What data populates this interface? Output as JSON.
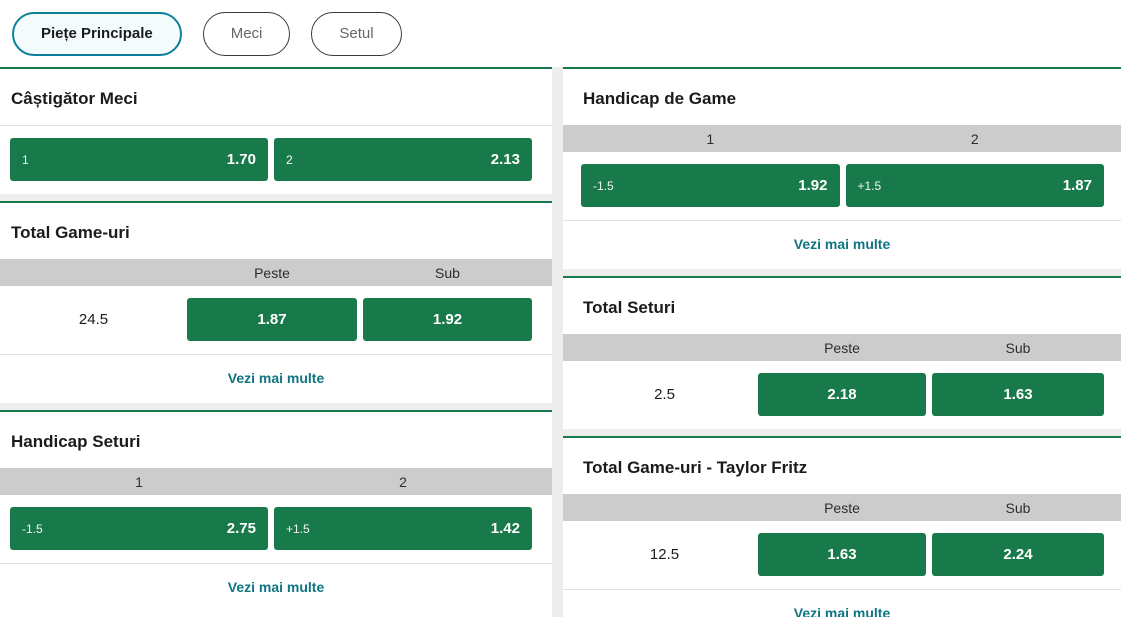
{
  "ui": {
    "show_more_label": "Vezi mai multe",
    "colors": {
      "accent_green": "#187a4b",
      "link_teal": "#0f7582",
      "selected_tab_border": "#0c7f99",
      "header_bar_gray": "#cccccc",
      "page_background": "#ededed"
    }
  },
  "tabs": [
    {
      "label": "Piețe Principale",
      "selected": true
    },
    {
      "label": "Meci",
      "selected": false
    },
    {
      "label": "Setul",
      "selected": false
    }
  ],
  "left_column": {
    "match_winner": {
      "title": "Câștigător Meci",
      "buttons": [
        {
          "label": "1",
          "odds": "1.70"
        },
        {
          "label": "2",
          "odds": "2.13"
        }
      ]
    },
    "total_games": {
      "title": "Total Game-uri",
      "headers": {
        "over": "Peste",
        "under": "Sub"
      },
      "line": "24.5",
      "over_odds": "1.87",
      "under_odds": "1.92"
    },
    "handicap_sets": {
      "title": "Handicap Seturi",
      "headers": {
        "col1": "1",
        "col2": "2"
      },
      "buttons": [
        {
          "label": "-1.5",
          "odds": "2.75"
        },
        {
          "label": "+1.5",
          "odds": "1.42"
        }
      ]
    }
  },
  "right_column": {
    "game_handicap": {
      "title": "Handicap de Game",
      "headers": {
        "col1": "1",
        "col2": "2"
      },
      "buttons": [
        {
          "label": "-1.5",
          "odds": "1.92"
        },
        {
          "label": "+1.5",
          "odds": "1.87"
        }
      ]
    },
    "total_sets": {
      "title": "Total Seturi",
      "headers": {
        "over": "Peste",
        "under": "Sub"
      },
      "line": "2.5",
      "over_odds": "2.18",
      "under_odds": "1.63"
    },
    "total_games_taylor_fritz": {
      "title": "Total Game-uri - Taylor Fritz",
      "headers": {
        "over": "Peste",
        "under": "Sub"
      },
      "line": "12.5",
      "over_odds": "1.63",
      "under_odds": "2.24"
    }
  }
}
